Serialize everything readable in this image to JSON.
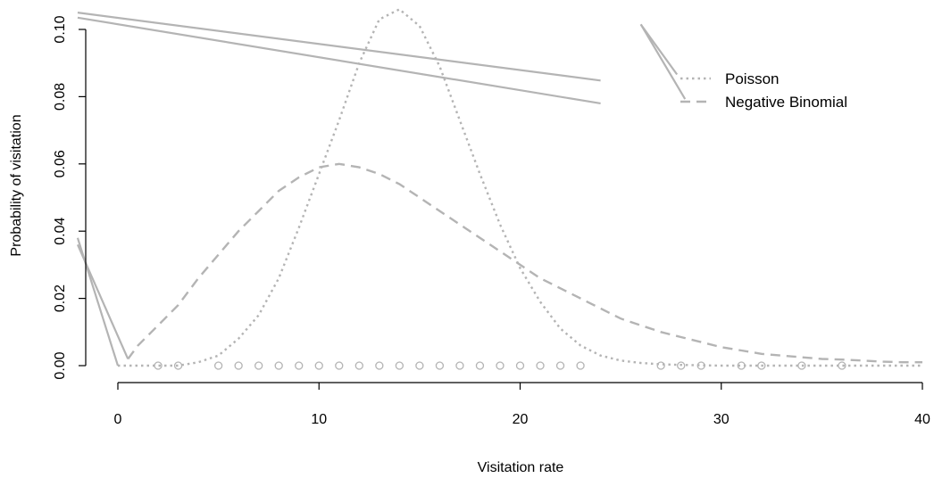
{
  "chart_data": {
    "type": "line",
    "xlabel": "Visitation rate",
    "ylabel": "Probability of visitation",
    "xlim": [
      -2,
      40
    ],
    "ylim": [
      0,
      0.1
    ],
    "x_ticks": [
      "0",
      "10",
      "20",
      "30",
      "40"
    ],
    "y_ticks": [
      "0.00",
      "0.02",
      "0.04",
      "0.06",
      "0.08",
      "0.10"
    ],
    "grid": false,
    "legend_position": "top-right",
    "colors": {
      "series": "#b4b4b4",
      "artifact": "#b4b4b4"
    },
    "legend": [
      {
        "label": "Poisson",
        "dash": "dotted"
      },
      {
        "label": "Negative Binomial",
        "dash": "dashed"
      }
    ],
    "series": [
      {
        "name": "Poisson",
        "x": [
          0,
          1,
          2,
          3,
          4,
          5,
          6,
          7,
          8,
          9,
          10,
          11,
          12,
          13,
          14,
          15,
          16,
          17,
          18,
          19,
          20,
          21,
          22,
          23,
          24,
          25,
          26,
          27,
          28,
          29,
          30,
          31,
          32,
          33,
          34,
          35,
          36,
          37,
          38,
          39,
          40
        ],
        "y": [
          0,
          0,
          0,
          0,
          0.001,
          0.003,
          0.008,
          0.015,
          0.026,
          0.041,
          0.057,
          0.073,
          0.09,
          0.103,
          0.106,
          0.101,
          0.089,
          0.073,
          0.057,
          0.042,
          0.029,
          0.019,
          0.011,
          0.006,
          0.003,
          0.0015,
          0.0008,
          0.0004,
          0.0002,
          0.0001,
          0,
          0,
          0,
          0,
          0,
          0,
          0,
          0,
          0,
          0,
          0
        ]
      },
      {
        "name": "Negative Binomial",
        "x": [
          0.5,
          1,
          2,
          3,
          4,
          5,
          6,
          7,
          8,
          9,
          10,
          11,
          12,
          13,
          14,
          15,
          16,
          17,
          18,
          19,
          20,
          21,
          22,
          23,
          24,
          25,
          26,
          27,
          28,
          29,
          30,
          31,
          32,
          33,
          34,
          35,
          36,
          37,
          38,
          39,
          40
        ],
        "y": [
          0.002,
          0.006,
          0.012,
          0.018,
          0.026,
          0.033,
          0.04,
          0.046,
          0.052,
          0.056,
          0.059,
          0.06,
          0.059,
          0.057,
          0.054,
          0.05,
          0.046,
          0.042,
          0.038,
          0.034,
          0.03,
          0.026,
          0.023,
          0.02,
          0.017,
          0.014,
          0.012,
          0.01,
          0.0085,
          0.007,
          0.0055,
          0.0045,
          0.0035,
          0.003,
          0.0025,
          0.002,
          0.0018,
          0.0015,
          0.0012,
          0.001,
          0.001
        ]
      },
      {
        "name": "",
        "style": "points",
        "x": [
          2,
          3,
          5,
          6,
          7,
          8,
          9,
          10,
          11,
          12,
          13,
          14,
          15,
          16,
          17,
          18,
          19,
          20,
          21,
          22,
          23,
          27,
          28,
          29,
          31,
          32,
          34,
          36
        ],
        "y": [
          0,
          0,
          0,
          0,
          0,
          0,
          0,
          0,
          0,
          0,
          0,
          0,
          0,
          0,
          0,
          0,
          0,
          0,
          0,
          0,
          0,
          0,
          0,
          0,
          0,
          0,
          0,
          0
        ]
      }
    ],
    "artifact_lines": [
      {
        "x": [
          -2,
          24
        ],
        "y": [
          0.105,
          0.0848
        ]
      },
      {
        "x": [
          -2,
          24
        ],
        "y": [
          0.1035,
          0.078
        ]
      },
      {
        "x": [
          -2,
          0
        ],
        "y": [
          0.038,
          0
        ]
      },
      {
        "x": [
          -2,
          0.5
        ],
        "y": [
          0.036,
          0.002
        ]
      },
      {
        "x": [
          26,
          27.8
        ],
        "y": [
          0.1015,
          0.0866
        ]
      },
      {
        "x": [
          26,
          28.2
        ],
        "y": [
          0.1015,
          0.0793
        ]
      }
    ]
  }
}
